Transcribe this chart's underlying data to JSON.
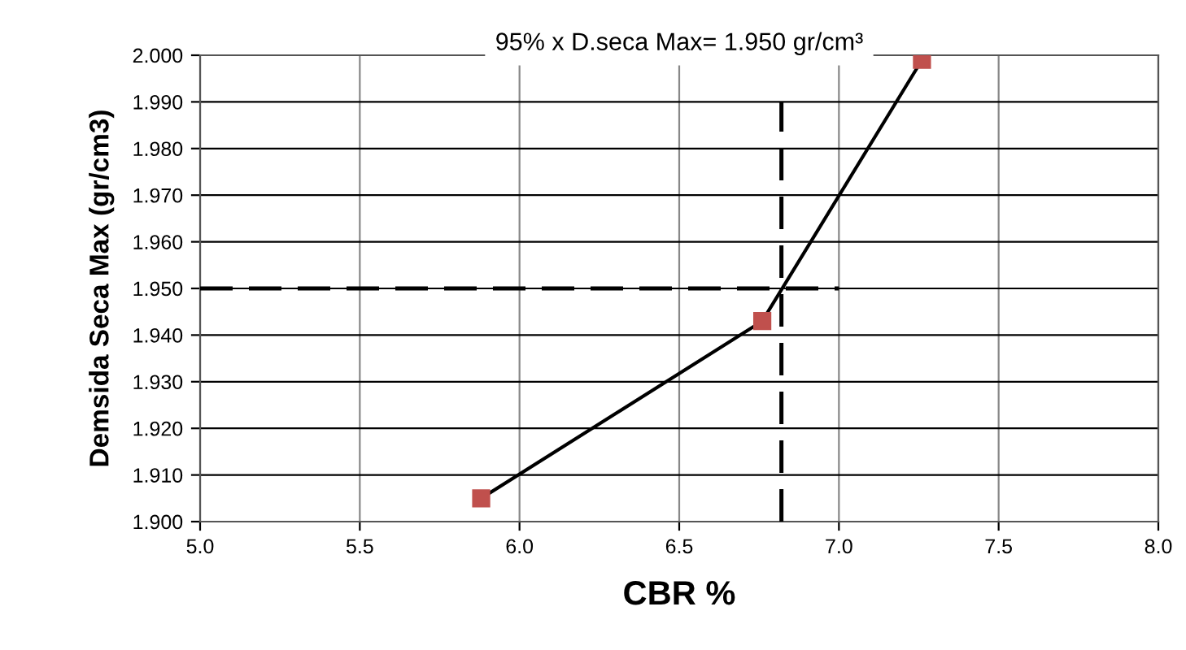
{
  "chart_data": {
    "type": "line",
    "title": "95% x D.seca Max= 1.950 gr/cm³",
    "xlabel": "CBR %",
    "ylabel": "Demsida Seca Max (gr/cm3)",
    "xlim": [
      5.0,
      8.0
    ],
    "xticks": [
      {
        "value": 5,
        "label": "5.0"
      },
      5.5,
      {
        "value": 6,
        "label": "6.0"
      },
      6.5,
      {
        "value": 7,
        "label": "7.0"
      },
      7.5,
      {
        "value": 8,
        "label": "8.0"
      }
    ],
    "ylim": [
      1.9,
      2.0
    ],
    "yticks": [
      {
        "value": 1.9,
        "label": "1.900"
      },
      {
        "value": 1.91,
        "label": "1.910"
      },
      {
        "value": 1.92,
        "label": "1.920"
      },
      {
        "value": 1.93,
        "label": "1.930"
      },
      {
        "value": 1.94,
        "label": "1.940"
      },
      {
        "value": 1.95,
        "label": "1.950"
      },
      {
        "value": 1.96,
        "label": "1.960"
      },
      {
        "value": 1.97,
        "label": "1.970"
      },
      {
        "value": 1.98,
        "label": "1.980"
      },
      {
        "value": 1.99,
        "label": "1.990"
      },
      {
        "value": 2.0,
        "label": "2.000"
      }
    ],
    "grid": true,
    "legend": false,
    "series": [
      {
        "x": [
          5.88,
          6.76,
          7.26
        ],
        "values": [
          1.905,
          1.943,
          1.999
        ],
        "color": "#c0504d",
        "marker": "square",
        "line_style": "solid"
      },
      {
        "x": [
          5.0,
          7.0
        ],
        "values": [
          1.95,
          1.95
        ],
        "color": "#000000",
        "marker": "none",
        "line_style": "dashed"
      },
      {
        "x": [
          6.82,
          6.82
        ],
        "values": [
          1.9,
          1.99
        ],
        "color": "#000000",
        "marker": "none",
        "line_style": "dashed"
      }
    ]
  }
}
